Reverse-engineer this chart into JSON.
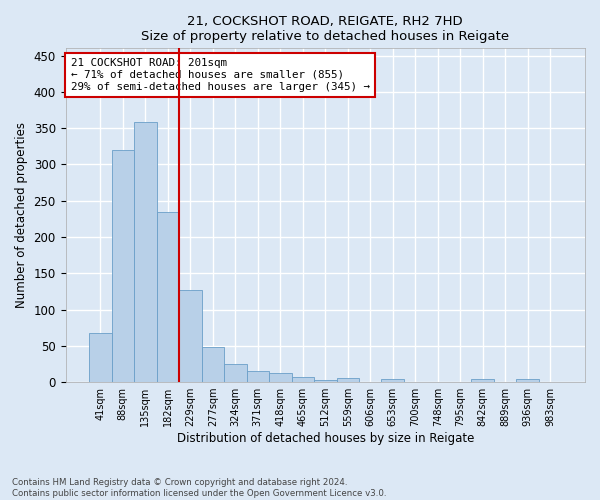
{
  "title1": "21, COCKSHOT ROAD, REIGATE, RH2 7HD",
  "title2": "Size of property relative to detached houses in Reigate",
  "xlabel": "Distribution of detached houses by size in Reigate",
  "ylabel": "Number of detached properties",
  "footnote": "Contains HM Land Registry data © Crown copyright and database right 2024.\nContains public sector information licensed under the Open Government Licence v3.0.",
  "bar_labels": [
    "41sqm",
    "88sqm",
    "135sqm",
    "182sqm",
    "229sqm",
    "277sqm",
    "324sqm",
    "371sqm",
    "418sqm",
    "465sqm",
    "512sqm",
    "559sqm",
    "606sqm",
    "653sqm",
    "700sqm",
    "748sqm",
    "795sqm",
    "842sqm",
    "889sqm",
    "936sqm",
    "983sqm"
  ],
  "bar_values": [
    67,
    320,
    358,
    235,
    127,
    49,
    25,
    15,
    12,
    7,
    3,
    5,
    0,
    4,
    0,
    0,
    0,
    4,
    0,
    4,
    0
  ],
  "bar_color": "#b8d0e8",
  "bar_edgecolor": "#6a9fc8",
  "vline_x": 3,
  "vline_color": "#cc0000",
  "annotation_text": "21 COCKSHOT ROAD: 201sqm\n← 71% of detached houses are smaller (855)\n29% of semi-detached houses are larger (345) →",
  "annotation_box_edgecolor": "#cc0000",
  "annotation_box_facecolor": "#ffffff",
  "ylim": [
    0,
    460
  ],
  "yticks": [
    0,
    50,
    100,
    150,
    200,
    250,
    300,
    350,
    400,
    450
  ],
  "bg_color": "#dce8f5",
  "plot_bg_color": "#dce8f5",
  "grid_color": "#ffffff",
  "footnote_color": "#444444"
}
